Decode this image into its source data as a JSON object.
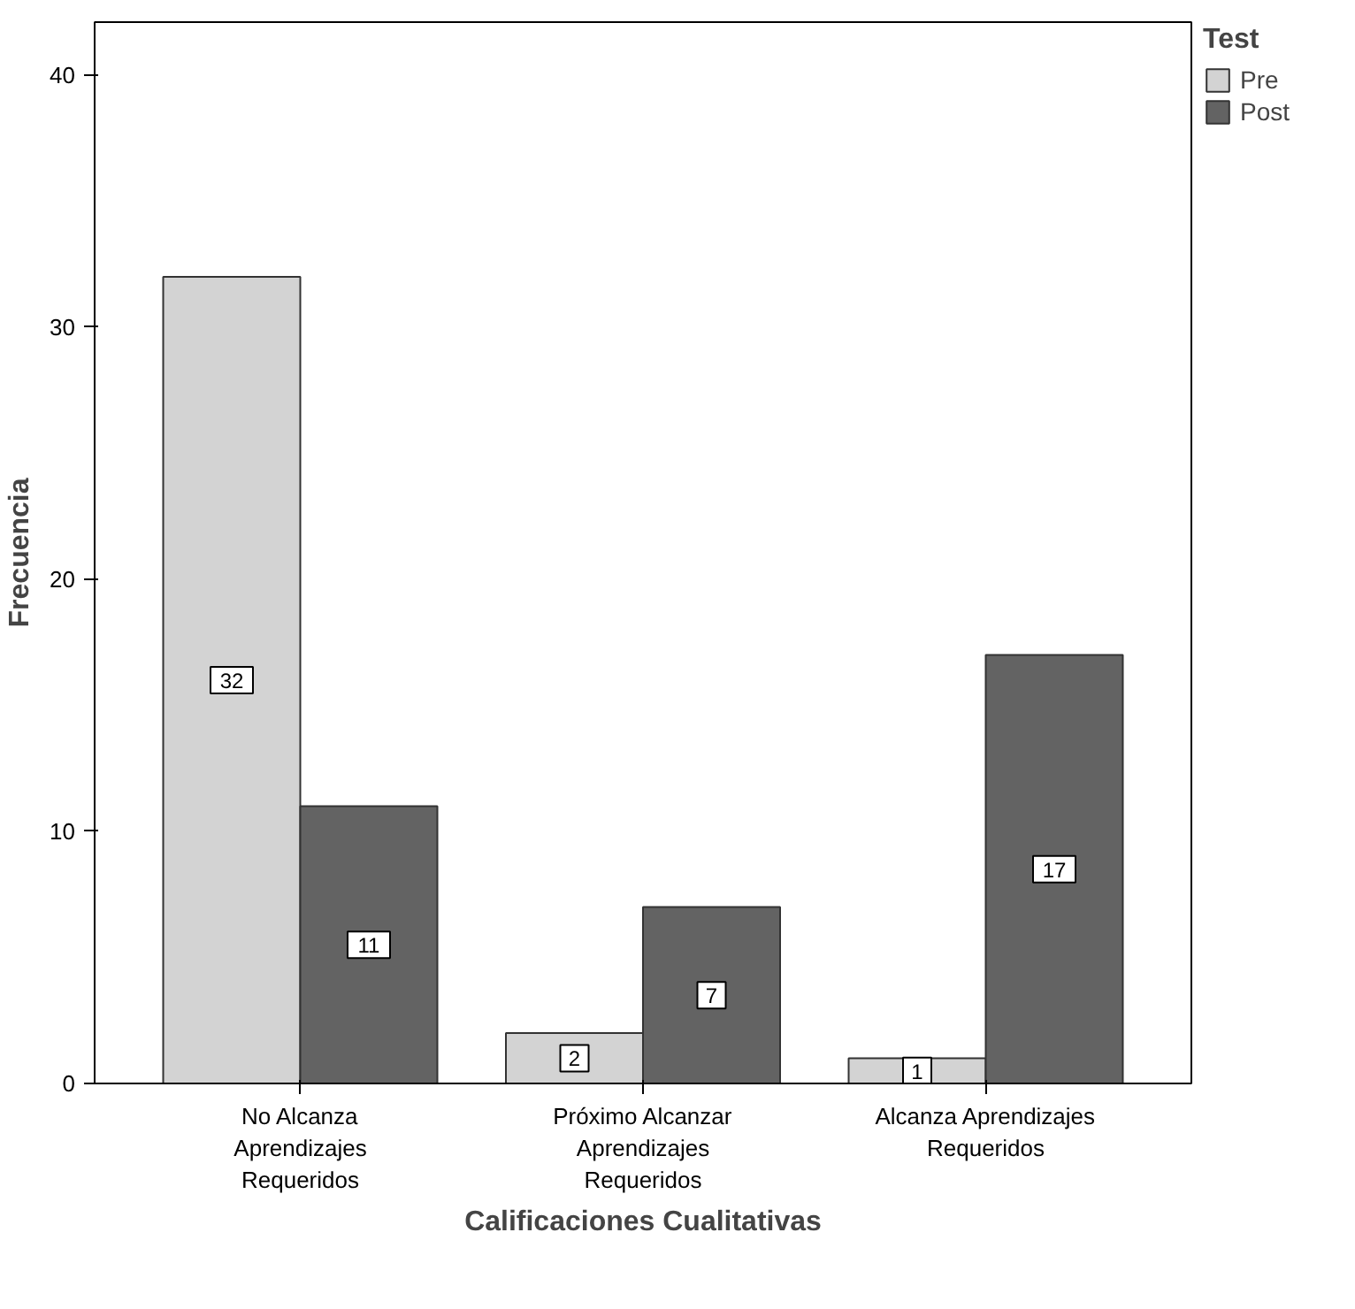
{
  "chart_data": {
    "type": "bar",
    "xlabel": "Calificaciones Cualitativas",
    "ylabel": "Frecuencia",
    "legend_title": "Test",
    "categories": [
      "No Alcanza Aprendizajes Requeridos",
      "Próximo Alcanzar Aprendizajes Requeridos",
      "Alcanza Aprendizajes Requeridos"
    ],
    "series": [
      {
        "name": "Pre",
        "color": "#d3d3d3",
        "values": [
          32,
          2,
          1
        ]
      },
      {
        "name": "Post",
        "color": "#636363",
        "values": [
          11,
          7,
          17
        ]
      }
    ],
    "ylim": [
      0,
      42.1
    ],
    "yticks": [
      0,
      10,
      20,
      30,
      40
    ],
    "grid": false,
    "legend": "top right",
    "data_labels": true
  }
}
